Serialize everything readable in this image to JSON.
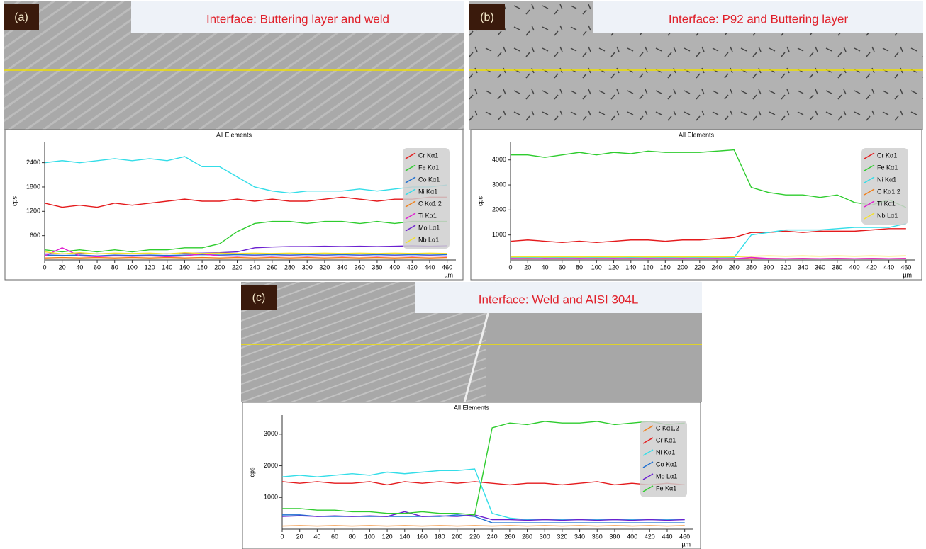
{
  "chart_data": [
    {
      "type": "line",
      "label": "(a)",
      "subtitle": "Interface:  Buttering layer and weld",
      "title": "All Elements",
      "ylabel": "cps",
      "xlabel": "µm",
      "xlim": [
        0,
        470
      ],
      "xticks": [
        0,
        20,
        40,
        60,
        80,
        100,
        120,
        140,
        160,
        180,
        200,
        220,
        240,
        260,
        280,
        300,
        320,
        340,
        360,
        380,
        400,
        420,
        440,
        460
      ],
      "ylim": [
        0,
        2900
      ],
      "yticks": [
        600,
        1200,
        1800,
        2400
      ],
      "x": [
        0,
        20,
        40,
        60,
        80,
        100,
        120,
        140,
        160,
        180,
        200,
        220,
        240,
        260,
        280,
        300,
        320,
        340,
        360,
        380,
        400,
        420,
        440,
        460
      ],
      "series": [
        {
          "name": "Cr Kα1",
          "color": "#e41a1c",
          "values": [
            1400,
            1300,
            1350,
            1300,
            1400,
            1350,
            1400,
            1450,
            1500,
            1450,
            1450,
            1500,
            1450,
            1500,
            1450,
            1450,
            1500,
            1550,
            1500,
            1450,
            1500,
            1500,
            1550,
            1550
          ]
        },
        {
          "name": "Fe Kα1",
          "color": "#2ecc2e",
          "values": [
            250,
            200,
            250,
            200,
            250,
            200,
            250,
            250,
            300,
            300,
            400,
            700,
            900,
            950,
            950,
            900,
            950,
            950,
            900,
            950,
            900,
            950,
            950,
            950
          ]
        },
        {
          "name": "Co Kα1",
          "color": "#1f6fd0",
          "values": [
            120,
            110,
            120,
            100,
            120,
            110,
            120,
            110,
            120,
            130,
            120,
            130,
            120,
            130,
            120,
            130,
            120,
            130,
            120,
            130,
            120,
            130,
            120,
            130
          ]
        },
        {
          "name": "Ni Kα1",
          "color": "#33dde8",
          "values": [
            2400,
            2450,
            2400,
            2450,
            2500,
            2450,
            2500,
            2450,
            2550,
            2300,
            2300,
            2050,
            1800,
            1700,
            1650,
            1700,
            1700,
            1700,
            1750,
            1700,
            1750,
            1800,
            1800,
            1850
          ]
        },
        {
          "name": "C Kα1,2",
          "color": "#f07f1a",
          "values": [
            50,
            60,
            50,
            60,
            50,
            60,
            50,
            60,
            50,
            60,
            50,
            60,
            50,
            60,
            50,
            60,
            50,
            60,
            50,
            60,
            50,
            60,
            50,
            60
          ]
        },
        {
          "name": "Ti Kα1",
          "color": "#e020d0",
          "values": [
            100,
            300,
            100,
            80,
            100,
            90,
            100,
            80,
            100,
            150,
            100,
            90,
            100,
            90,
            100,
            90,
            100,
            90,
            100,
            90,
            100,
            90,
            100,
            90
          ]
        },
        {
          "name": "Mo Lα1",
          "color": "#6a1fd0",
          "values": [
            150,
            150,
            160,
            150,
            160,
            150,
            160,
            150,
            170,
            170,
            180,
            200,
            300,
            320,
            330,
            330,
            340,
            330,
            340,
            330,
            340,
            350,
            340,
            350
          ]
        },
        {
          "name": "Nb Lα1",
          "color": "#f5e02a",
          "values": [
            200,
            150,
            180,
            150,
            170,
            160,
            170,
            150,
            180,
            160,
            170,
            160,
            170,
            160,
            170,
            160,
            170,
            160,
            170,
            160,
            170,
            160,
            170,
            160
          ]
        }
      ]
    },
    {
      "type": "line",
      "label": "(b)",
      "subtitle": "Interface: P92 and Buttering layer",
      "title": "All Elements",
      "ylabel": "cps",
      "xlabel": "µm",
      "xlim": [
        0,
        470
      ],
      "xticks": [
        0,
        20,
        40,
        60,
        80,
        100,
        120,
        140,
        160,
        180,
        200,
        220,
        240,
        260,
        280,
        300,
        320,
        340,
        360,
        380,
        400,
        420,
        440,
        460
      ],
      "ylim": [
        0,
        4700
      ],
      "yticks": [
        1000,
        2000,
        3000,
        4000
      ],
      "x": [
        0,
        20,
        40,
        60,
        80,
        100,
        120,
        140,
        160,
        180,
        200,
        220,
        240,
        260,
        280,
        300,
        320,
        340,
        360,
        380,
        400,
        420,
        440,
        460
      ],
      "series": [
        {
          "name": "Cr Kα1",
          "color": "#e41a1c",
          "values": [
            750,
            800,
            750,
            700,
            750,
            700,
            750,
            800,
            800,
            750,
            800,
            800,
            850,
            900,
            1100,
            1100,
            1150,
            1100,
            1150,
            1150,
            1150,
            1200,
            1250,
            1250
          ]
        },
        {
          "name": "Fe Kα1",
          "color": "#2ecc2e",
          "values": [
            4200,
            4200,
            4100,
            4200,
            4300,
            4200,
            4300,
            4250,
            4350,
            4300,
            4300,
            4300,
            4350,
            4400,
            2900,
            2700,
            2600,
            2600,
            2500,
            2600,
            2300,
            2200,
            2400,
            2100
          ]
        },
        {
          "name": "Ni Kα1",
          "color": "#33dde8",
          "values": [
            100,
            100,
            100,
            100,
            100,
            100,
            100,
            100,
            100,
            100,
            100,
            100,
            100,
            100,
            1000,
            1100,
            1200,
            1200,
            1200,
            1250,
            1300,
            1300,
            1300,
            1450
          ]
        },
        {
          "name": "C Kα1,2",
          "color": "#f07f1a",
          "values": [
            50,
            60,
            50,
            60,
            50,
            60,
            50,
            60,
            50,
            60,
            50,
            60,
            50,
            60,
            50,
            60,
            50,
            60,
            50,
            60,
            50,
            60,
            50,
            60
          ]
        },
        {
          "name": "Ti Kα1",
          "color": "#e020d0",
          "values": [
            60,
            50,
            60,
            50,
            60,
            50,
            60,
            50,
            60,
            50,
            60,
            50,
            60,
            50,
            100,
            60,
            50,
            60,
            50,
            60,
            50,
            60,
            50,
            60
          ]
        },
        {
          "name": "Nb Lα1",
          "color": "#f5e02a",
          "values": [
            120,
            130,
            120,
            130,
            120,
            130,
            120,
            130,
            120,
            130,
            120,
            130,
            120,
            130,
            150,
            160,
            150,
            160,
            150,
            160,
            150,
            160,
            150,
            160
          ]
        }
      ]
    },
    {
      "type": "line",
      "label": "(c)",
      "subtitle": "Interface: Weld and AISI 304L",
      "title": "All Elements",
      "ylabel": "cps",
      "xlabel": "µm",
      "xlim": [
        0,
        470
      ],
      "xticks": [
        0,
        20,
        40,
        60,
        80,
        100,
        120,
        140,
        160,
        180,
        200,
        220,
        240,
        260,
        280,
        300,
        320,
        340,
        360,
        380,
        400,
        420,
        440,
        460
      ],
      "ylim": [
        0,
        3600
      ],
      "yticks": [
        1000,
        2000,
        3000
      ],
      "x": [
        0,
        20,
        40,
        60,
        80,
        100,
        120,
        140,
        160,
        180,
        200,
        220,
        240,
        260,
        280,
        300,
        320,
        340,
        360,
        380,
        400,
        420,
        440,
        460
      ],
      "series": [
        {
          "name": "C Kα1,2",
          "color": "#f07f1a",
          "values": [
            100,
            110,
            100,
            110,
            100,
            110,
            100,
            110,
            100,
            110,
            100,
            110,
            100,
            110,
            100,
            110,
            100,
            110,
            100,
            110,
            100,
            110,
            100,
            110
          ]
        },
        {
          "name": "Cr Kα1",
          "color": "#e41a1c",
          "values": [
            1500,
            1450,
            1500,
            1450,
            1450,
            1500,
            1400,
            1500,
            1450,
            1500,
            1450,
            1500,
            1450,
            1400,
            1450,
            1450,
            1400,
            1450,
            1500,
            1400,
            1450,
            1400,
            1450,
            1400
          ]
        },
        {
          "name": "Ni Kα1",
          "color": "#33dde8",
          "values": [
            1650,
            1700,
            1650,
            1700,
            1750,
            1700,
            1800,
            1750,
            1800,
            1850,
            1850,
            1900,
            500,
            350,
            300,
            300,
            300,
            300,
            300,
            300,
            300,
            300,
            300,
            300
          ]
        },
        {
          "name": "Co Kα1",
          "color": "#1f6fd0",
          "values": [
            450,
            450,
            400,
            400,
            400,
            400,
            400,
            400,
            400,
            400,
            450,
            400,
            200,
            200,
            200,
            200,
            200,
            200,
            200,
            200,
            200,
            200,
            200,
            200
          ]
        },
        {
          "name": "Mo Lα1",
          "color": "#6a1fd0",
          "values": [
            400,
            420,
            400,
            420,
            400,
            420,
            400,
            550,
            400,
            420,
            400,
            450,
            300,
            300,
            280,
            300,
            280,
            300,
            280,
            300,
            280,
            300,
            280,
            300
          ]
        },
        {
          "name": "Fe Kα1",
          "color": "#2ecc2e",
          "values": [
            650,
            650,
            600,
            600,
            550,
            550,
            500,
            500,
            550,
            500,
            500,
            450,
            3200,
            3350,
            3300,
            3400,
            3350,
            3350,
            3400,
            3300,
            3350,
            3400,
            3300,
            3350
          ]
        }
      ]
    }
  ]
}
